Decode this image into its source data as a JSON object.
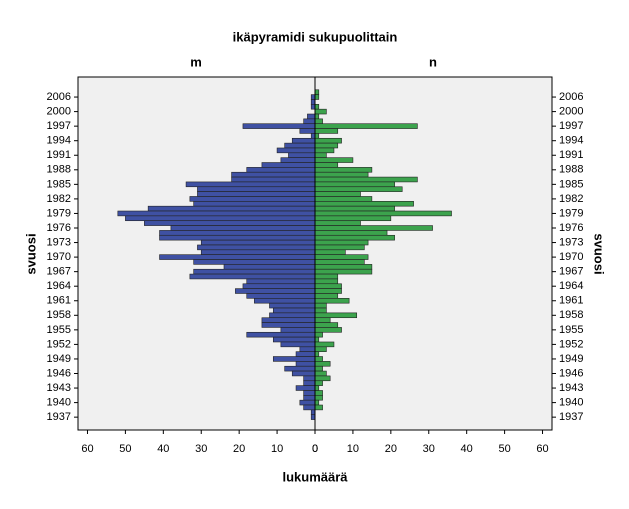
{
  "chart_data": {
    "type": "pyramid",
    "title": "ikäpyramidi sukupuolittain",
    "xlabel": "lukumäärä",
    "ylabel": "svuosi",
    "categories": [
      null,
      "2006",
      null,
      null,
      "2000",
      null,
      null,
      "1997",
      null,
      null,
      "1994",
      null,
      null,
      "1991",
      null,
      null,
      "1988",
      null,
      null,
      "1985",
      null,
      null,
      "1982",
      null,
      null,
      "1979",
      null,
      null,
      "1976",
      null,
      null,
      "1973",
      null,
      null,
      "1970",
      null,
      null,
      "1967",
      null,
      null,
      "1964",
      null,
      null,
      "1961",
      null,
      null,
      "1958",
      null,
      null,
      "1955",
      null,
      null,
      "1952",
      null,
      null,
      "1949",
      null,
      null,
      "1946",
      null,
      null,
      "1943",
      null,
      null,
      "1940",
      null,
      null,
      "1937"
    ],
    "series": [
      {
        "name": "m",
        "color": "#3f51a3",
        "values": [
          0,
          1,
          1,
          1,
          0,
          2,
          3,
          19,
          4,
          1,
          6,
          8,
          10,
          7,
          9,
          14,
          18,
          22,
          22,
          34,
          31,
          31,
          33,
          32,
          44,
          52,
          50,
          45,
          38,
          41,
          41,
          30,
          31,
          30,
          41,
          32,
          24,
          32,
          33,
          18,
          19,
          21,
          18,
          16,
          12,
          11,
          12,
          14,
          14,
          9,
          18,
          11,
          9,
          4,
          5,
          11,
          5,
          8,
          6,
          3,
          3,
          5,
          3,
          3,
          4,
          3,
          1,
          1
        ]
      },
      {
        "name": "n",
        "color": "#3ca34d",
        "values": [
          1,
          1,
          0,
          1,
          3,
          1,
          2,
          27,
          6,
          1,
          7,
          6,
          5,
          3,
          10,
          6,
          15,
          14,
          27,
          21,
          23,
          12,
          15,
          26,
          21,
          36,
          20,
          12,
          31,
          19,
          21,
          14,
          13,
          8,
          14,
          13,
          15,
          15,
          6,
          6,
          7,
          7,
          6,
          9,
          3,
          3,
          11,
          4,
          6,
          7,
          2,
          1,
          5,
          3,
          1,
          2,
          4,
          2,
          3,
          4,
          2,
          1,
          2,
          2,
          1,
          2,
          0,
          0
        ]
      }
    ],
    "xlim": [
      0,
      62.5
    ],
    "xticks": [
      0,
      10,
      20,
      30,
      40,
      50,
      60
    ]
  }
}
